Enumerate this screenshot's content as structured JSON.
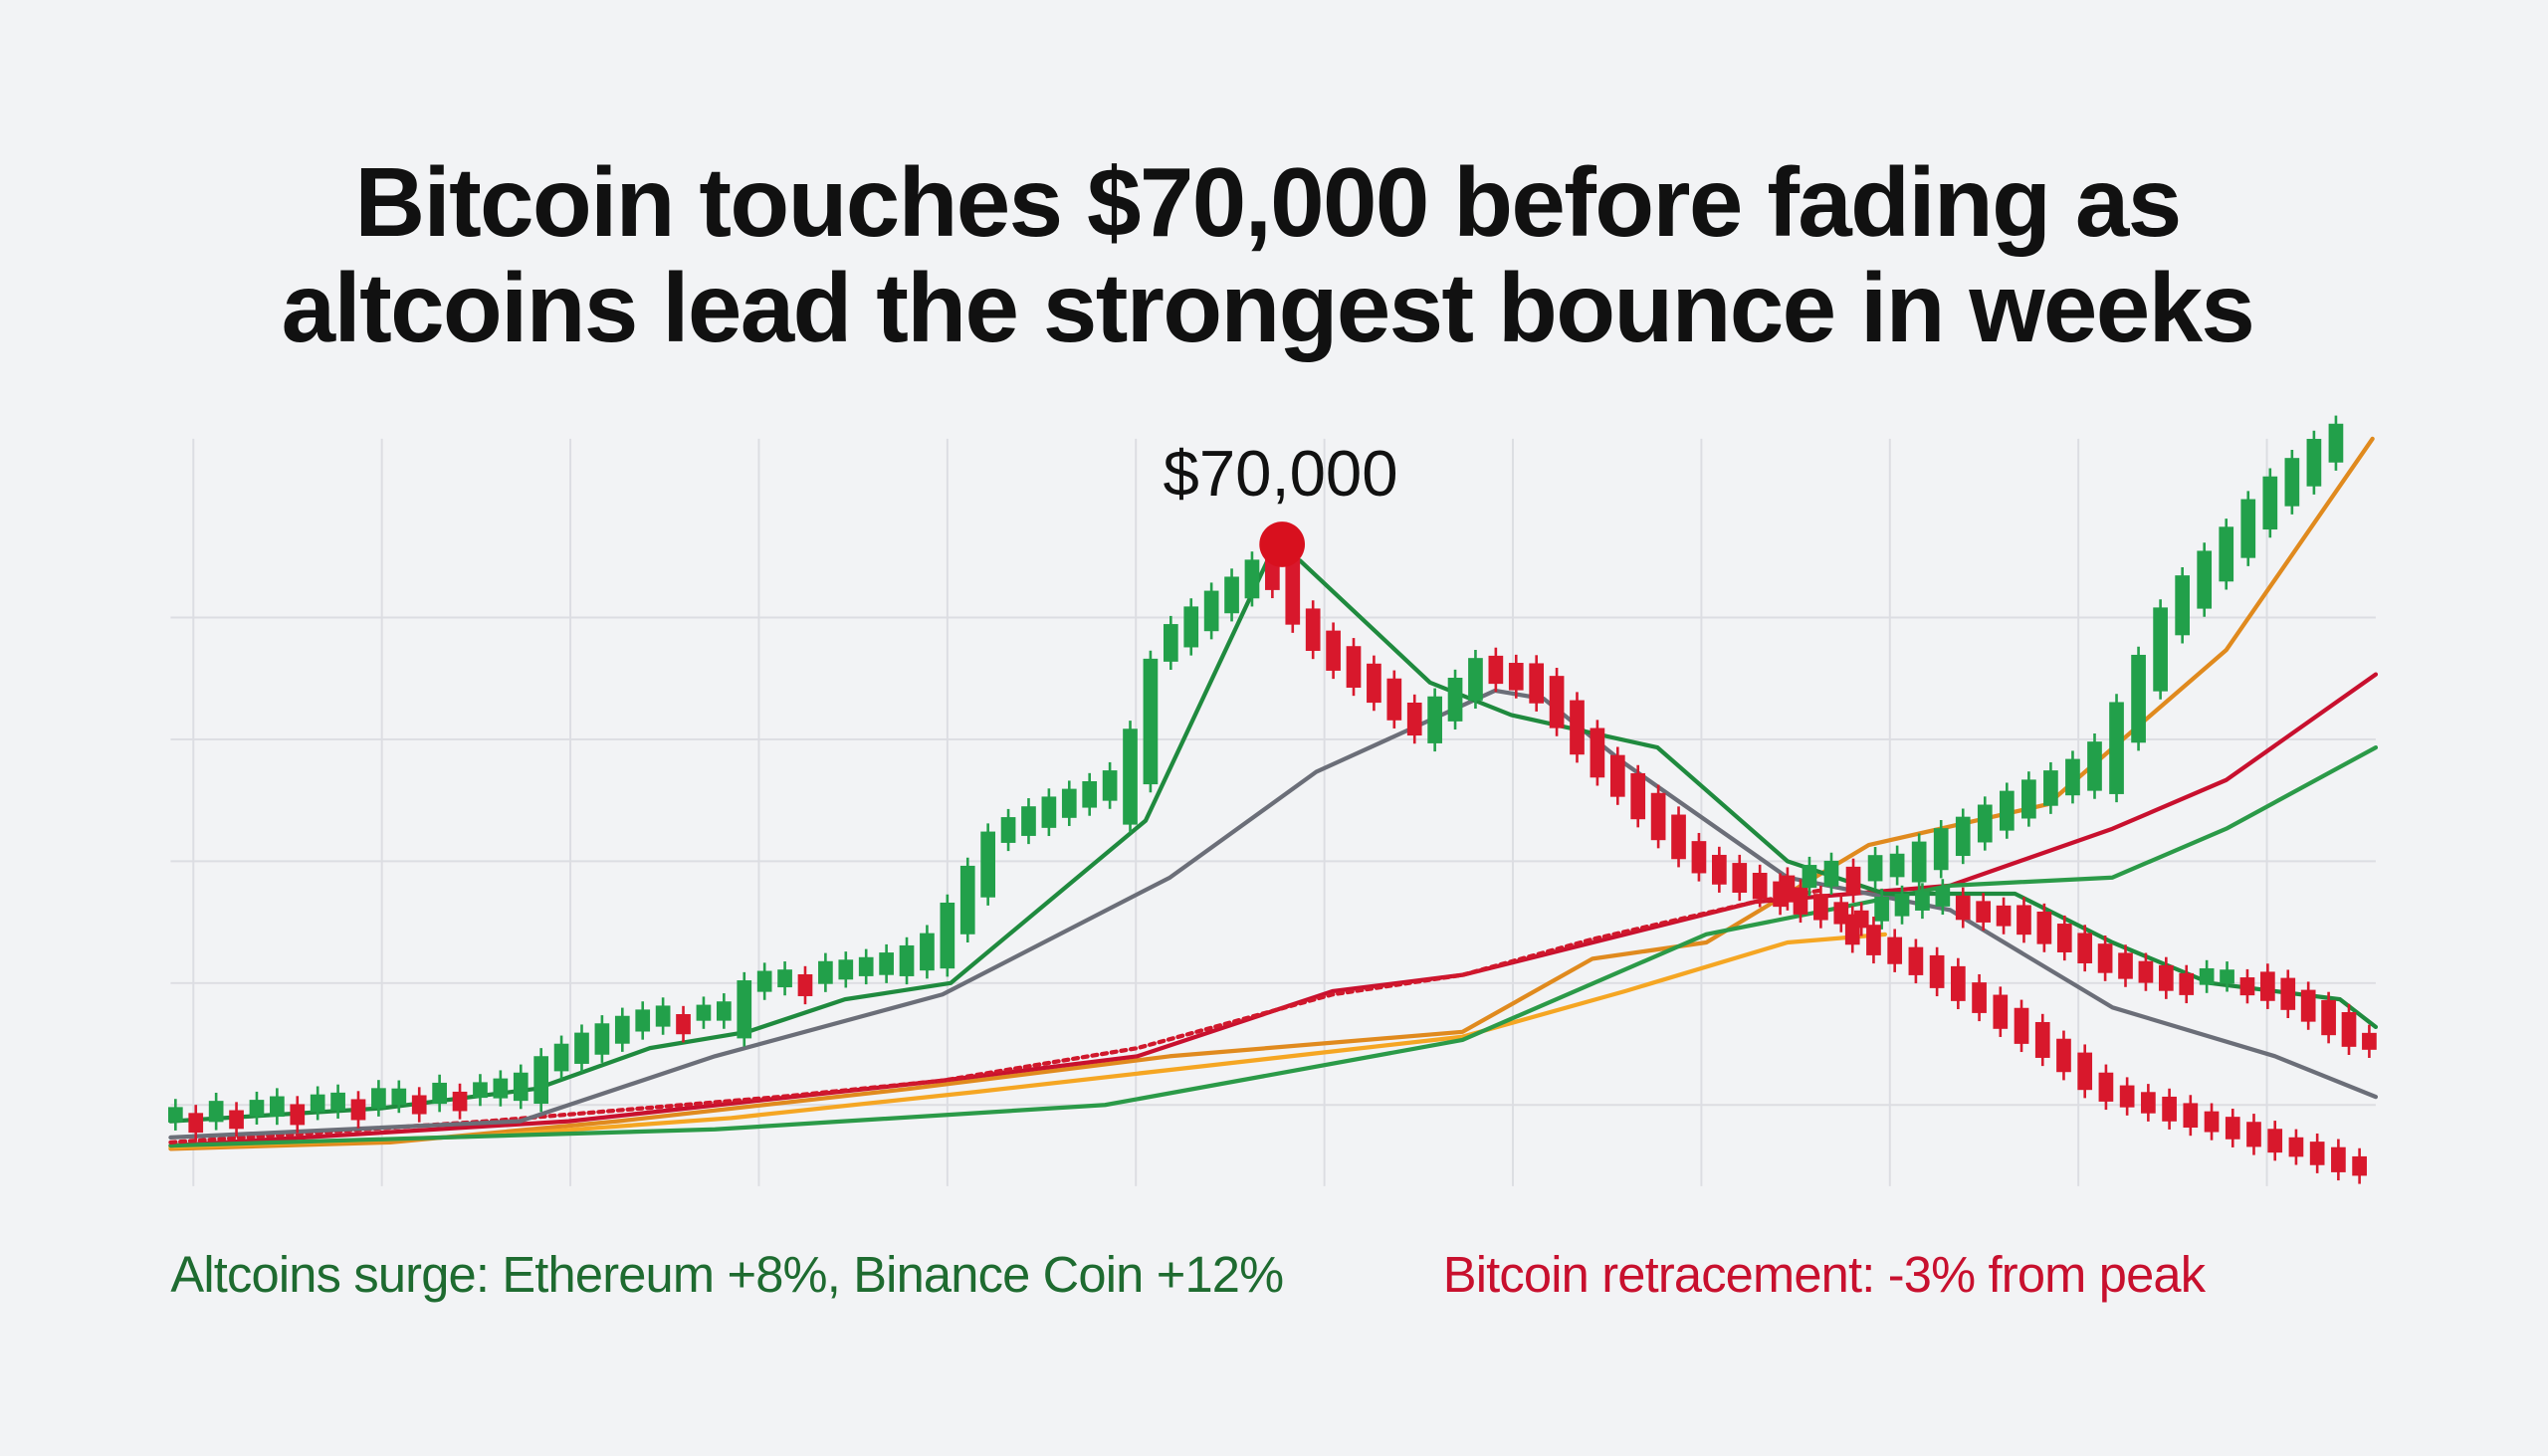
{
  "header": {
    "title_lines": [
      "Bitcoin touches $70,000 before fading as",
      "altcoins lead the strongest bounce in weeks"
    ]
  },
  "annotation": "$70,000",
  "captions": {
    "left": "Altcoins surge: Ethereum +8%, Binance Coin +12%",
    "right": "Bitcoin retracement: -3% from peak"
  }
}
